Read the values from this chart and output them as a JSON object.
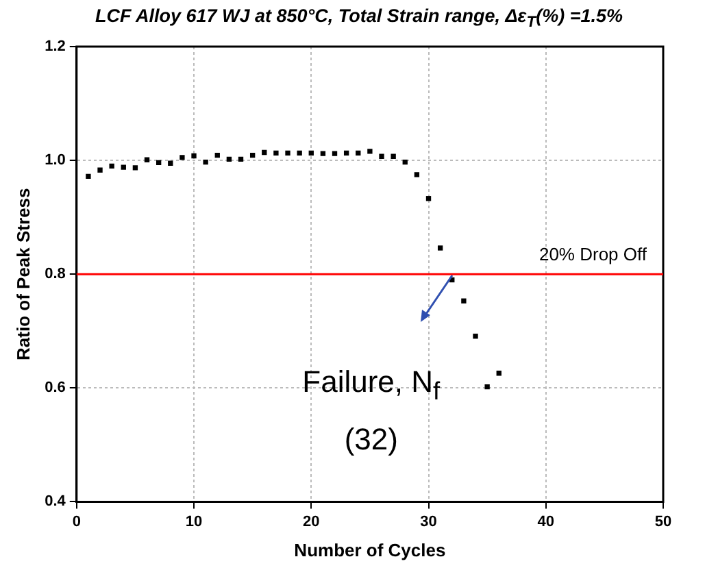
{
  "chart_data": {
    "type": "scatter",
    "title": "LCF Alloy 617 WJ at 850°C, Total Strain range, Δε$_{T}$(%) =1.5%",
    "xlabel": "Number of Cycles",
    "ylabel": "Ratio of Peak Stress",
    "x": [
      1,
      2,
      3,
      4,
      5,
      6,
      7,
      8,
      9,
      10,
      11,
      12,
      13,
      14,
      15,
      16,
      17,
      18,
      19,
      20,
      21,
      22,
      23,
      24,
      25,
      26,
      27,
      28,
      29,
      30,
      31,
      32,
      33,
      34,
      35,
      36
    ],
    "series": [
      {
        "color": "#000000",
        "values": [
          0.972,
          0.983,
          0.99,
          0.988,
          0.987,
          1.001,
          0.996,
          0.995,
          1.005,
          1.008,
          0.997,
          1.009,
          1.002,
          1.002,
          1.009,
          1.014,
          1.013,
          1.013,
          1.013,
          1.013,
          1.012,
          1.012,
          1.013,
          1.013,
          1.016,
          1.007,
          1.007,
          0.997,
          0.975,
          0.933,
          0.846,
          0.79,
          0.753,
          0.691,
          0.602,
          0.626
        ]
      }
    ],
    "xlim": [
      0,
      50
    ],
    "xticks": [
      0,
      10,
      20,
      30,
      40,
      50
    ],
    "ylim": [
      0.4,
      1.2
    ],
    "yticks": [
      0.4,
      0.6,
      0.8,
      {
        "value": 1,
        "label": "1.0"
      },
      1.2
    ],
    "grid": true,
    "legend": false,
    "marker": "square",
    "ref_lines": [
      {
        "axis": "y",
        "value": 0.8,
        "label": "20% Drop Off",
        "color": "#ff0000"
      }
    ],
    "annotations": [
      {
        "text": "Failure, N$_{f}$",
        "x": 32,
        "y": 0.79
      },
      "(32)"
    ]
  }
}
